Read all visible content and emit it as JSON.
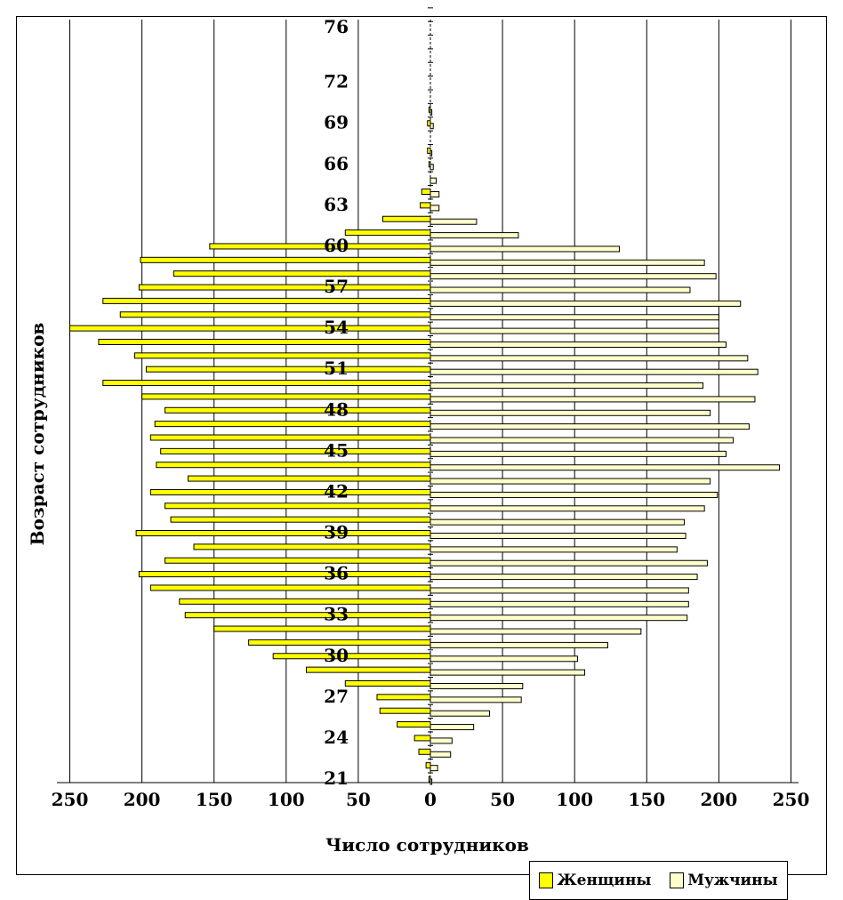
{
  "chart_data": {
    "type": "bar",
    "subtype": "population-pyramid",
    "orientation": "horizontal",
    "xlabel": "Число сотрудников",
    "ylabel": "Возраст сотрудников",
    "xlim": [
      -250,
      250
    ],
    "x_ticks": [
      250,
      200,
      150,
      100,
      50,
      0,
      50,
      100,
      150,
      200,
      250
    ],
    "y_ticks": [
      21,
      24,
      27,
      30,
      33,
      36,
      39,
      42,
      45,
      48,
      51,
      54,
      57,
      60,
      63,
      66,
      69,
      72,
      76
    ],
    "grid": "vertical",
    "legend_position": "bottom-right",
    "categories": [
      21,
      22,
      23,
      24,
      25,
      26,
      27,
      28,
      29,
      30,
      31,
      32,
      33,
      34,
      35,
      36,
      37,
      38,
      39,
      40,
      41,
      42,
      43,
      44,
      45,
      46,
      47,
      48,
      49,
      50,
      51,
      52,
      53,
      54,
      55,
      56,
      57,
      58,
      59,
      60,
      61,
      62,
      63,
      64,
      65,
      66,
      67,
      68,
      69,
      70
    ],
    "series": [
      {
        "name": "Женщины",
        "color": "#ffff00",
        "values": [
          1,
          3,
          8,
          11,
          23,
          35,
          37,
          59,
          86,
          109,
          126,
          150,
          170,
          174,
          194,
          202,
          184,
          164,
          204,
          180,
          184,
          194,
          168,
          190,
          187,
          194,
          191,
          184,
          200,
          227,
          197,
          205,
          230,
          250,
          215,
          227,
          202,
          178,
          201,
          153,
          59,
          33,
          7,
          6,
          0,
          1,
          2,
          0,
          2,
          1
        ]
      },
      {
        "name": "Мужчины",
        "color": "#ffffcc",
        "values": [
          1,
          5,
          14,
          15,
          30,
          41,
          63,
          64,
          107,
          102,
          123,
          146,
          178,
          179,
          179,
          185,
          192,
          171,
          177,
          176,
          190,
          199,
          194,
          242,
          205,
          210,
          221,
          194,
          225,
          189,
          227,
          220,
          205,
          200,
          200,
          215,
          180,
          198,
          190,
          131,
          61,
          32,
          6,
          6,
          4,
          2,
          1,
          0,
          2,
          1
        ]
      }
    ]
  },
  "colors": {
    "women": "#ffff00",
    "men": "#ffffcc",
    "grid": "#000000"
  }
}
